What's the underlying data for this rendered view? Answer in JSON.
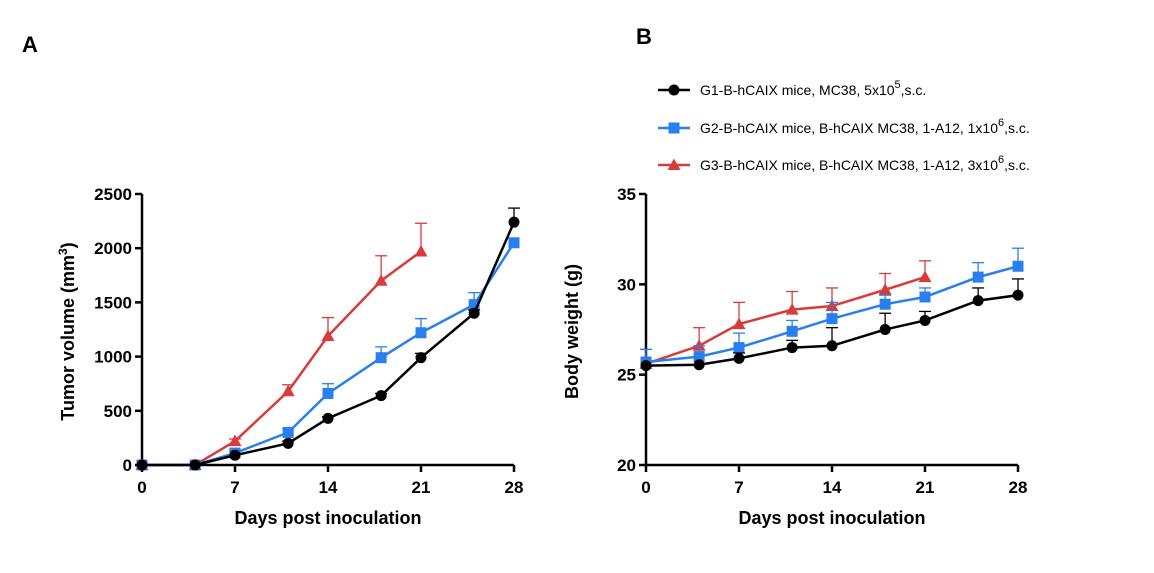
{
  "figure": {
    "panel_a_letter": "A",
    "panel_b_letter": "B"
  },
  "legend": [
    {
      "key": "g1",
      "prefix": "G1-B-hCAIX mice, MC38, 5x10",
      "exp": "5",
      "suffix": ",s.c."
    },
    {
      "key": "g2",
      "prefix": "G2-B-hCAIX mice, B-hCAIX MC38, 1-A12, 1x10",
      "exp": "6",
      "suffix": ",s.c."
    },
    {
      "key": "g3",
      "prefix": "G3-B-hCAIX mice, B-hCAIX MC38, 1-A12, 3x10",
      "exp": "6",
      "suffix": ",s.c."
    }
  ],
  "colors": {
    "g1": "#000000",
    "g2": "#2a7fef",
    "g3": "#d93a3a"
  },
  "markers": {
    "g1": "circle",
    "g2": "square",
    "g3": "triangle"
  },
  "chart_data": [
    {
      "type": "line",
      "panel": "A",
      "xlabel": "Days post inoculation",
      "ylabel": "Tumor volume (mm",
      "ylabel_sup": "3",
      "ylabel_end": ")",
      "xlim": [
        0,
        28
      ],
      "ylim": [
        0,
        2500
      ],
      "xticks": [
        0,
        7,
        14,
        21,
        28
      ],
      "yticks": [
        0,
        500,
        1000,
        1500,
        2000,
        2500
      ],
      "grid": false,
      "series": [
        {
          "key": "g1",
          "x": [
            0,
            4,
            7,
            11,
            14,
            18,
            21,
            25,
            28
          ],
          "y": [
            0,
            0,
            90,
            200,
            430,
            640,
            990,
            1400,
            2240
          ],
          "err": [
            0,
            0,
            0,
            20,
            15,
            20,
            40,
            30,
            130
          ]
        },
        {
          "key": "g2",
          "x": [
            0,
            4,
            7,
            11,
            14,
            18,
            21,
            25,
            28
          ],
          "y": [
            0,
            0,
            110,
            300,
            660,
            990,
            1220,
            1480,
            2050
          ],
          "err": [
            0,
            0,
            20,
            30,
            90,
            100,
            130,
            110,
            0
          ]
        },
        {
          "key": "g3",
          "x": [
            0,
            4,
            7,
            11,
            14,
            18,
            21
          ],
          "y": [
            0,
            0,
            220,
            680,
            1190,
            1700,
            1970
          ],
          "err": [
            0,
            0,
            20,
            60,
            170,
            230,
            260
          ]
        }
      ]
    },
    {
      "type": "line",
      "panel": "B",
      "xlabel": "Days post inoculation",
      "ylabel": "Body weight (g)",
      "xlim": [
        0,
        28
      ],
      "ylim": [
        20,
        35
      ],
      "xticks": [
        0,
        7,
        14,
        21,
        28
      ],
      "yticks": [
        20,
        25,
        30,
        35
      ],
      "grid": false,
      "series": [
        {
          "key": "g1",
          "x": [
            0,
            4,
            7,
            11,
            14,
            18,
            21,
            25,
            28
          ],
          "y": [
            25.5,
            25.55,
            25.9,
            26.5,
            26.6,
            27.5,
            28.0,
            29.1,
            29.4
          ],
          "err": [
            0,
            0,
            0.3,
            0.4,
            1.0,
            0.9,
            0.5,
            0.7,
            0.9
          ]
        },
        {
          "key": "g2",
          "x": [
            0,
            4,
            7,
            11,
            14,
            18,
            21,
            25,
            28
          ],
          "y": [
            25.7,
            26.0,
            26.5,
            27.4,
            28.1,
            28.9,
            29.3,
            30.4,
            31.0
          ],
          "err": [
            0.7,
            0.6,
            0.8,
            0.6,
            0.9,
            0.5,
            0.5,
            0.8,
            1.0
          ]
        },
        {
          "key": "g3",
          "x": [
            0,
            4,
            7,
            11,
            14,
            18,
            21
          ],
          "y": [
            25.6,
            26.6,
            27.8,
            28.6,
            28.8,
            29.7,
            30.4
          ],
          "err": [
            0.8,
            1.0,
            1.2,
            1.0,
            1.0,
            0.9,
            0.9
          ]
        }
      ]
    }
  ]
}
